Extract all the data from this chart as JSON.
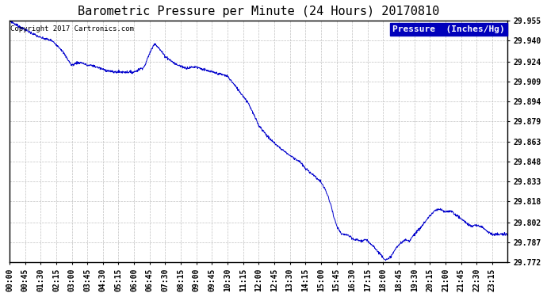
{
  "title": "Barometric Pressure per Minute (24 Hours) 20170810",
  "copyright": "Copyright 2017 Cartronics.com",
  "legend_label": "Pressure  (Inches/Hg)",
  "line_color": "#0000CC",
  "background_color": "#ffffff",
  "grid_color": "#c0c0c0",
  "ylim": [
    29.772,
    29.955
  ],
  "yticks": [
    29.772,
    29.787,
    29.802,
    29.818,
    29.833,
    29.848,
    29.863,
    29.879,
    29.894,
    29.909,
    29.924,
    29.94,
    29.955
  ],
  "xtick_labels": [
    "00:00",
    "00:45",
    "01:30",
    "02:15",
    "03:00",
    "03:45",
    "04:30",
    "05:15",
    "06:00",
    "06:45",
    "07:30",
    "08:15",
    "09:00",
    "09:45",
    "10:30",
    "11:15",
    "12:00",
    "12:45",
    "13:30",
    "14:15",
    "15:00",
    "15:45",
    "16:30",
    "17:15",
    "18:00",
    "18:45",
    "19:30",
    "20:15",
    "21:00",
    "21:45",
    "22:30",
    "23:15"
  ],
  "title_fontsize": 11,
  "tick_fontsize": 7,
  "legend_fontsize": 8,
  "copyright_fontsize": 6.5,
  "keypoints_t": [
    0,
    0.3,
    0.75,
    1.0,
    1.5,
    2.0,
    2.25,
    2.5,
    3.0,
    3.25,
    3.5,
    3.75,
    4.0,
    4.5,
    5.0,
    5.5,
    6.0,
    6.5,
    6.75,
    7.0,
    7.5,
    8.0,
    8.5,
    9.0,
    9.5,
    9.75,
    10.0,
    10.5,
    11.0,
    11.5,
    12.0,
    12.5,
    13.0,
    13.5,
    14.0,
    14.25,
    14.5,
    15.0,
    15.25,
    15.5,
    15.6,
    15.75,
    16.0,
    16.25,
    16.5,
    16.6,
    16.75,
    17.0,
    17.1,
    17.25,
    17.5,
    17.75,
    18.0,
    18.1,
    18.25,
    18.5,
    18.6,
    18.75,
    19.0,
    19.1,
    19.25,
    19.5,
    19.75,
    20.0,
    20.25,
    20.5,
    20.75,
    21.0,
    21.25,
    21.5,
    21.75,
    22.0,
    22.25,
    22.5,
    22.75,
    23.0,
    23.25,
    24.0
  ],
  "keypoints_v": [
    29.955,
    29.952,
    29.948,
    29.946,
    29.942,
    29.94,
    29.937,
    29.933,
    29.921,
    29.923,
    29.923,
    29.921,
    29.921,
    29.918,
    29.916,
    29.916,
    29.916,
    29.92,
    29.93,
    29.938,
    29.928,
    29.922,
    29.919,
    29.92,
    29.917,
    29.916,
    29.915,
    29.913,
    29.903,
    29.893,
    29.876,
    29.866,
    29.859,
    29.853,
    29.848,
    29.843,
    29.84,
    29.833,
    29.826,
    29.815,
    29.808,
    29.8,
    29.793,
    29.793,
    29.79,
    29.789,
    29.789,
    29.788,
    29.789,
    29.788,
    29.785,
    29.78,
    29.776,
    29.774,
    29.774,
    29.779,
    29.782,
    29.785,
    29.788,
    29.789,
    29.788,
    29.793,
    29.797,
    29.802,
    29.807,
    29.811,
    29.812,
    29.81,
    29.811,
    29.808,
    29.805,
    29.802,
    29.799,
    29.8,
    29.799,
    29.796,
    29.793,
    29.793
  ]
}
